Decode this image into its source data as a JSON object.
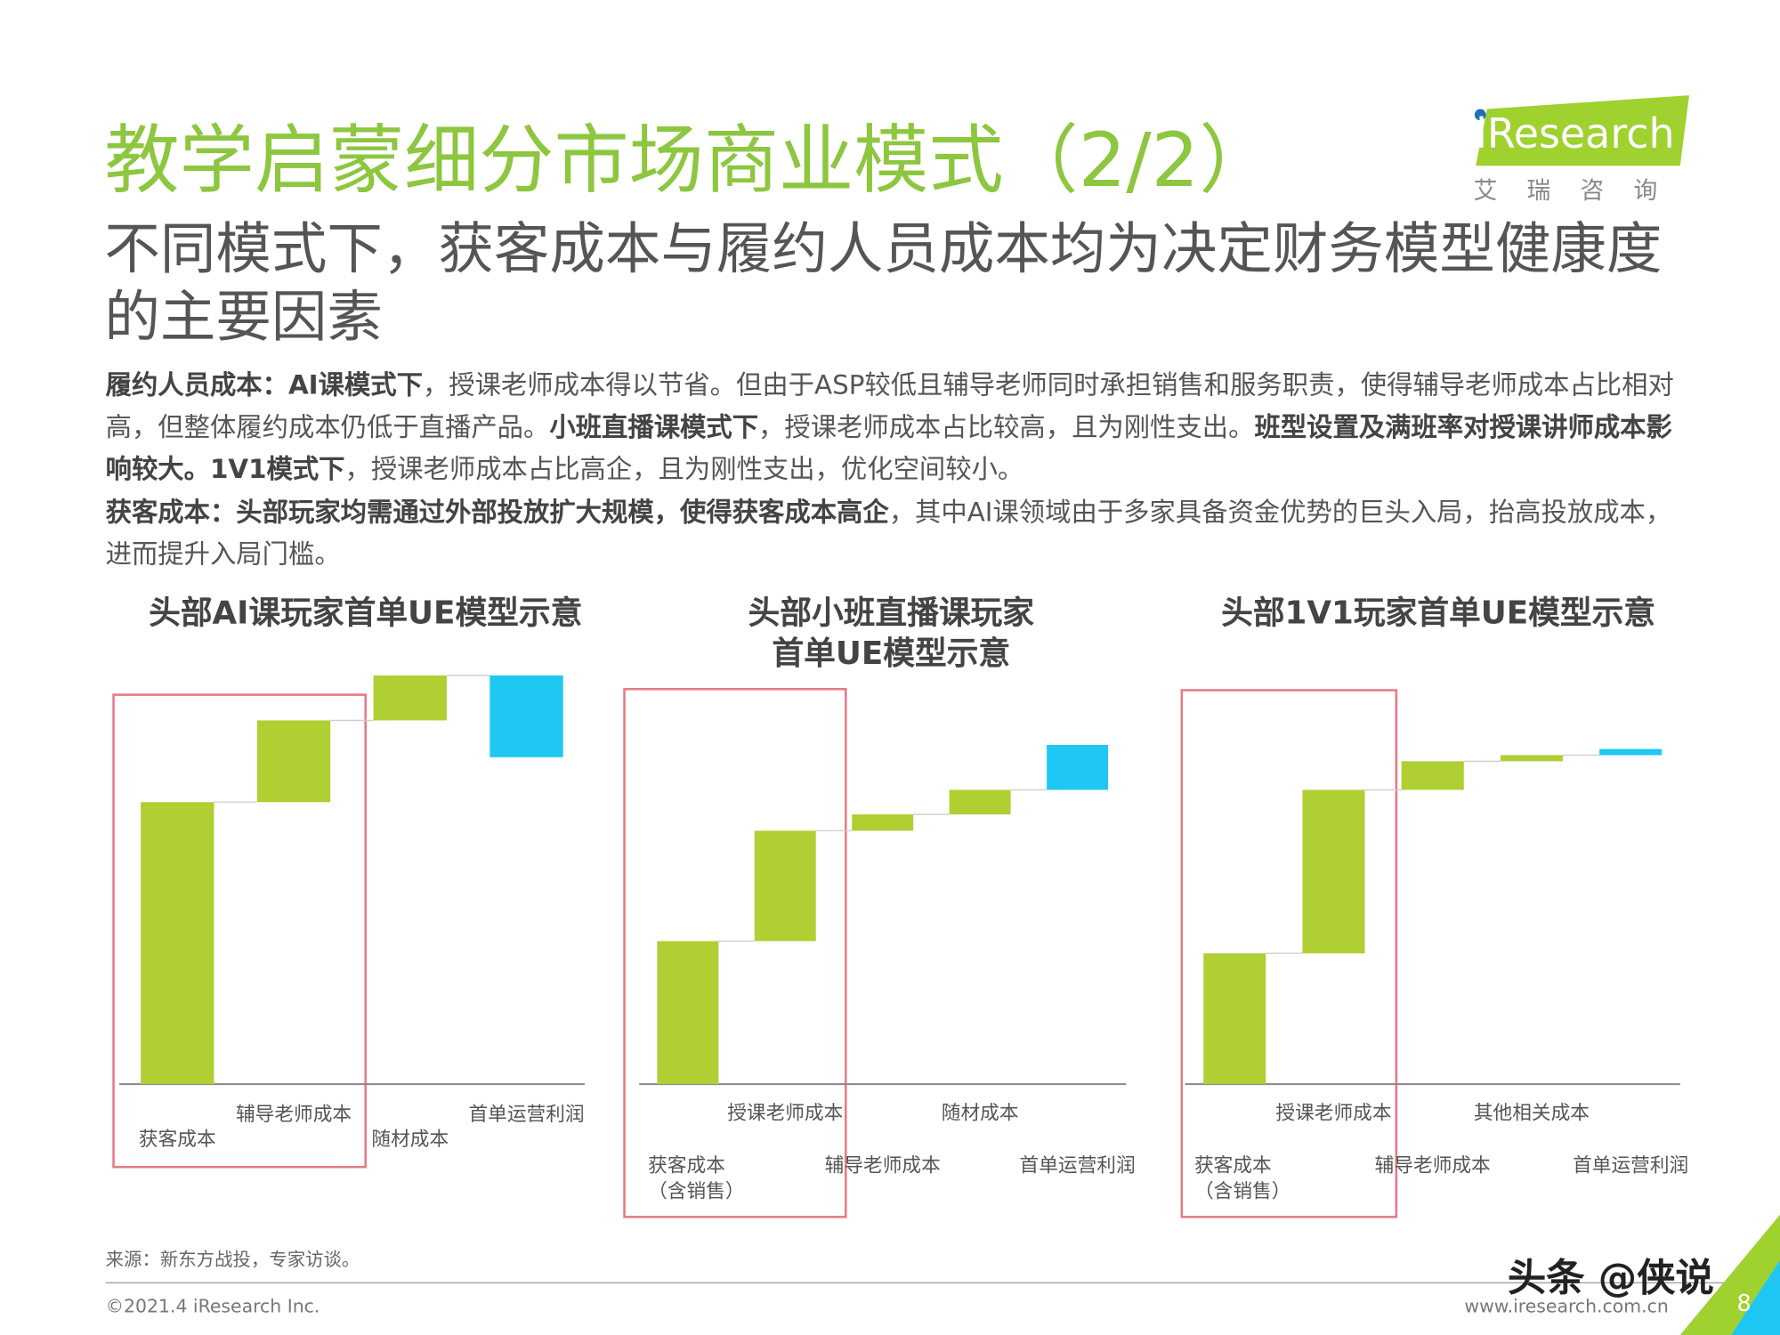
{
  "header": {
    "title": "教学启蒙细分市场商业模式（2/2）",
    "subtitle": "不同模式下，获客成本与履约人员成本均为决定财务模型健康度的主要因素"
  },
  "logo": {
    "name": "iResearch",
    "subtitle": "艾瑞咨询"
  },
  "paragraphs": [
    [
      {
        "text": "履约人员成本：AI课模式下",
        "bold": true
      },
      {
        "text": "，授课老师成本得以节省。但由于ASP较低且辅导老师同时承担销售和服务职责，使得辅导老师成本占比相对高，但整体履约成本仍低于直播产品。",
        "bold": false
      },
      {
        "text": "小班直播课模式下",
        "bold": true
      },
      {
        "text": "，授课老师成本占比较高，且为刚性支出。",
        "bold": false
      },
      {
        "text": "班型设置及满班率对授课讲师成本影响较大。1V1模式下",
        "bold": true
      },
      {
        "text": "，授课老师成本占比高企，且为刚性支出，优化空间较小。",
        "bold": false
      }
    ],
    [
      {
        "text": "获客成本：头部玩家均需通过外部投放扩大规模，使得获客成本高企",
        "bold": true
      },
      {
        "text": "，其中AI课领域由于多家具备资金优势的巨头入局，抬高投放成本，进而提升入局门槛。",
        "bold": false
      }
    ]
  ],
  "chart_data": [
    {
      "type": "waterfall",
      "title": "头部AI课玩家首单UE模型示意",
      "categories": [
        "获客成本",
        "辅导老师成本",
        "随材成本",
        "首单运营利润"
      ],
      "values": [
        69,
        20,
        11,
        -20
      ],
      "colors": [
        "#afcf33",
        "#afcf33",
        "#afcf33",
        "#1ec8f2"
      ],
      "ylim": [
        0,
        100
      ]
    },
    {
      "type": "waterfall",
      "title": "头部小班直播课玩家\n首单UE模型示意",
      "categories": [
        "获客成本\n（含销售）",
        "授课老师成本",
        "辅导老师成本",
        "随材成本",
        "首单运营利润"
      ],
      "values": [
        35,
        27,
        4,
        6,
        11
      ],
      "colors": [
        "#afcf33",
        "#afcf33",
        "#afcf33",
        "#afcf33",
        "#1ec8f2"
      ],
      "ylim": [
        0,
        100
      ]
    },
    {
      "type": "waterfall",
      "title": "头部1V1玩家首单UE模型示意",
      "categories": [
        "获客成本\n（含销售）",
        "授课老师成本",
        "辅导老师成本",
        "其他相关成本",
        "首单运营利润"
      ],
      "values": [
        32,
        40,
        7,
        1.5,
        1.5
      ],
      "colors": [
        "#afcf33",
        "#afcf33",
        "#afcf33",
        "#afcf33",
        "#1ec8f2"
      ],
      "ylim": [
        0,
        100
      ]
    }
  ],
  "footer": {
    "source": "来源：新东方战投，专家访谈。",
    "copyright": "©2021.4 iResearch Inc.",
    "url": "www.iresearch.com.cn",
    "watermark": "头条 @侠说",
    "page": "8"
  }
}
